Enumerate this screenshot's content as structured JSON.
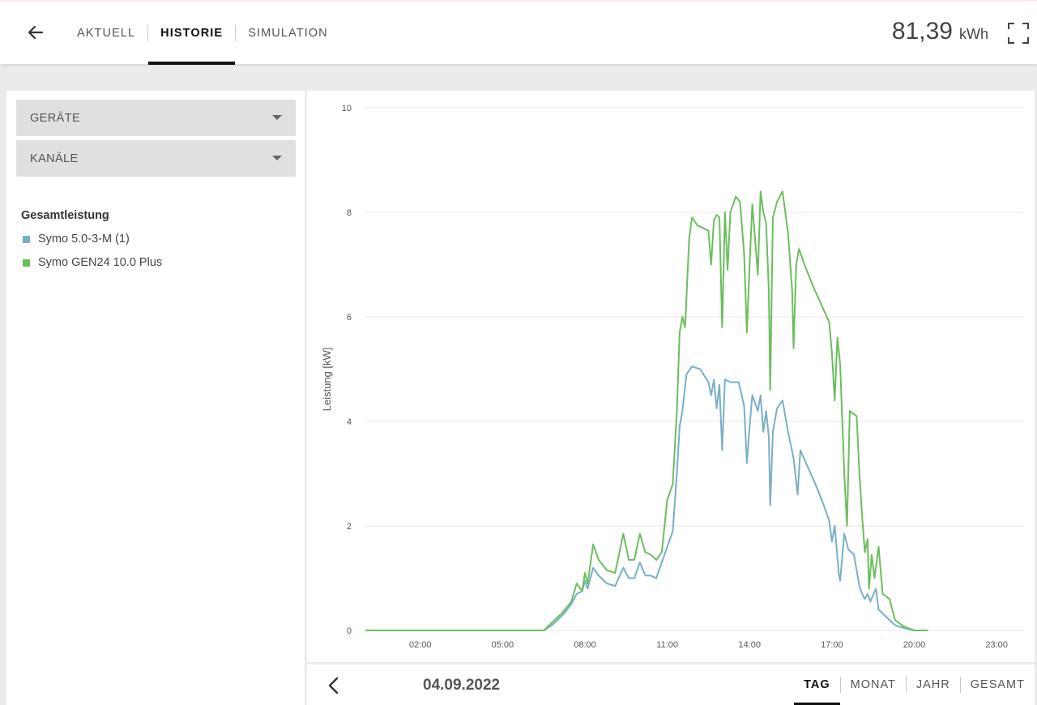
{
  "header": {
    "back_icon": "arrow-left-icon",
    "tabs": [
      {
        "label": "AKTUELL",
        "active": false
      },
      {
        "label": "HISTORIE",
        "active": true
      },
      {
        "label": "SIMULATION",
        "active": false
      }
    ],
    "total_value": "81,39",
    "total_unit": "kWh",
    "fullscreen_icon": "fullscreen-icon",
    "accent_color": "#111111"
  },
  "sidebar": {
    "dropdowns": [
      {
        "label": "GERÄTE"
      },
      {
        "label": "KANÄLE"
      }
    ],
    "legend_title": "Gesamtleistung",
    "legend_items": [
      {
        "label": "Symo 5.0-3-M (1)",
        "color": "#78afc8"
      },
      {
        "label": "Symo GEN24 10.0 Plus",
        "color": "#6abf5c"
      }
    ]
  },
  "footer": {
    "prev_icon": "chevron-left-icon",
    "date": "04.09.2022",
    "range_tabs": [
      {
        "label": "TAG",
        "active": true
      },
      {
        "label": "MONAT",
        "active": false
      },
      {
        "label": "JAHR",
        "active": false
      },
      {
        "label": "GESAMT",
        "active": false
      }
    ]
  },
  "chart_data": {
    "type": "line",
    "ylabel": "Leistung [kW]",
    "xlabel": "",
    "ylim": [
      0,
      10
    ],
    "y_ticks": [
      0,
      2,
      4,
      6,
      8,
      10
    ],
    "x_range_hours": [
      0,
      24
    ],
    "x_ticks": [
      {
        "hour": 2,
        "label": "02:00"
      },
      {
        "hour": 5,
        "label": "05:00"
      },
      {
        "hour": 8,
        "label": "08:00"
      },
      {
        "hour": 11,
        "label": "11:00"
      },
      {
        "hour": 14,
        "label": "14:00"
      },
      {
        "hour": 17,
        "label": "17:00"
      },
      {
        "hour": 20,
        "label": "20:00"
      },
      {
        "hour": 23,
        "label": "23:00"
      }
    ],
    "grid": true,
    "series": [
      {
        "name": "Symo 5.0-3-M (1)",
        "color": "#78afc8",
        "points": [
          [
            0,
            0
          ],
          [
            6.5,
            0
          ],
          [
            6.8,
            0.1
          ],
          [
            7.2,
            0.3
          ],
          [
            7.5,
            0.5
          ],
          [
            7.7,
            0.7
          ],
          [
            7.9,
            0.75
          ],
          [
            8.0,
            0.95
          ],
          [
            8.1,
            0.8
          ],
          [
            8.3,
            1.2
          ],
          [
            8.5,
            1.05
          ],
          [
            8.8,
            0.9
          ],
          [
            9.1,
            0.85
          ],
          [
            9.4,
            1.2
          ],
          [
            9.6,
            1.0
          ],
          [
            9.8,
            1.0
          ],
          [
            10.0,
            1.3
          ],
          [
            10.2,
            1.05
          ],
          [
            10.4,
            1.05
          ],
          [
            10.6,
            1.0
          ],
          [
            10.8,
            1.3
          ],
          [
            11.0,
            1.6
          ],
          [
            11.2,
            1.9
          ],
          [
            11.35,
            3.0
          ],
          [
            11.45,
            3.9
          ],
          [
            11.55,
            4.2
          ],
          [
            11.7,
            4.9
          ],
          [
            11.9,
            5.05
          ],
          [
            12.2,
            5.0
          ],
          [
            12.5,
            4.75
          ],
          [
            12.6,
            4.5
          ],
          [
            12.7,
            4.8
          ],
          [
            12.8,
            4.25
          ],
          [
            12.9,
            4.7
          ],
          [
            13.0,
            3.45
          ],
          [
            13.1,
            4.8
          ],
          [
            13.3,
            4.75
          ],
          [
            13.6,
            4.75
          ],
          [
            13.8,
            4.3
          ],
          [
            13.9,
            3.2
          ],
          [
            14.0,
            3.9
          ],
          [
            14.1,
            4.5
          ],
          [
            14.3,
            4.2
          ],
          [
            14.4,
            4.5
          ],
          [
            14.5,
            3.8
          ],
          [
            14.6,
            4.2
          ],
          [
            14.7,
            3.7
          ],
          [
            14.75,
            2.4
          ],
          [
            14.85,
            3.8
          ],
          [
            15.0,
            4.25
          ],
          [
            15.2,
            4.4
          ],
          [
            15.4,
            3.8
          ],
          [
            15.6,
            3.3
          ],
          [
            15.75,
            2.6
          ],
          [
            15.85,
            3.45
          ],
          [
            16.1,
            3.15
          ],
          [
            16.4,
            2.8
          ],
          [
            16.7,
            2.4
          ],
          [
            16.9,
            2.1
          ],
          [
            17.0,
            1.7
          ],
          [
            17.1,
            2.0
          ],
          [
            17.25,
            1.1
          ],
          [
            17.3,
            0.95
          ],
          [
            17.45,
            1.85
          ],
          [
            17.6,
            1.55
          ],
          [
            17.8,
            1.45
          ],
          [
            18.0,
            0.85
          ],
          [
            18.1,
            0.7
          ],
          [
            18.2,
            0.6
          ],
          [
            18.3,
            0.7
          ],
          [
            18.4,
            0.55
          ],
          [
            18.6,
            0.8
          ],
          [
            18.7,
            0.4
          ],
          [
            19.0,
            0.25
          ],
          [
            19.3,
            0.1
          ],
          [
            19.6,
            0.05
          ],
          [
            20.0,
            0
          ],
          [
            20.5,
            0
          ]
        ]
      },
      {
        "name": "Symo GEN24 10.0 Plus",
        "color": "#6abf5c",
        "points": [
          [
            0,
            0
          ],
          [
            6.5,
            0
          ],
          [
            6.8,
            0.15
          ],
          [
            7.2,
            0.35
          ],
          [
            7.5,
            0.55
          ],
          [
            7.7,
            0.9
          ],
          [
            7.9,
            0.75
          ],
          [
            8.0,
            1.1
          ],
          [
            8.1,
            0.9
          ],
          [
            8.3,
            1.65
          ],
          [
            8.5,
            1.35
          ],
          [
            8.8,
            1.15
          ],
          [
            9.1,
            1.1
          ],
          [
            9.4,
            1.85
          ],
          [
            9.6,
            1.35
          ],
          [
            9.8,
            1.35
          ],
          [
            10.0,
            1.85
          ],
          [
            10.2,
            1.5
          ],
          [
            10.4,
            1.45
          ],
          [
            10.6,
            1.35
          ],
          [
            10.8,
            1.5
          ],
          [
            11.0,
            2.5
          ],
          [
            11.2,
            2.8
          ],
          [
            11.35,
            4.2
          ],
          [
            11.45,
            5.7
          ],
          [
            11.55,
            6.0
          ],
          [
            11.65,
            5.8
          ],
          [
            11.8,
            7.5
          ],
          [
            11.9,
            7.9
          ],
          [
            12.1,
            7.75
          ],
          [
            12.3,
            7.7
          ],
          [
            12.5,
            7.65
          ],
          [
            12.6,
            7.0
          ],
          [
            12.7,
            7.85
          ],
          [
            12.8,
            7.95
          ],
          [
            12.9,
            7.9
          ],
          [
            13.0,
            5.8
          ],
          [
            13.1,
            8.0
          ],
          [
            13.2,
            6.9
          ],
          [
            13.3,
            8.0
          ],
          [
            13.5,
            8.3
          ],
          [
            13.65,
            8.2
          ],
          [
            13.8,
            7.2
          ],
          [
            13.9,
            5.7
          ],
          [
            14.0,
            7.0
          ],
          [
            14.1,
            8.15
          ],
          [
            14.2,
            7.5
          ],
          [
            14.3,
            6.8
          ],
          [
            14.4,
            8.4
          ],
          [
            14.5,
            8.0
          ],
          [
            14.6,
            7.8
          ],
          [
            14.7,
            6.5
          ],
          [
            14.75,
            4.6
          ],
          [
            14.85,
            7.9
          ],
          [
            15.0,
            8.2
          ],
          [
            15.2,
            8.4
          ],
          [
            15.4,
            7.6
          ],
          [
            15.55,
            6.5
          ],
          [
            15.6,
            5.4
          ],
          [
            15.7,
            7.0
          ],
          [
            15.8,
            7.3
          ],
          [
            16.0,
            7.0
          ],
          [
            16.3,
            6.6
          ],
          [
            16.6,
            6.25
          ],
          [
            16.9,
            5.9
          ],
          [
            17.0,
            5.3
          ],
          [
            17.1,
            4.4
          ],
          [
            17.2,
            5.6
          ],
          [
            17.3,
            5.1
          ],
          [
            17.45,
            3.0
          ],
          [
            17.55,
            2.0
          ],
          [
            17.65,
            4.2
          ],
          [
            17.9,
            4.1
          ],
          [
            18.0,
            3.0
          ],
          [
            18.1,
            2.2
          ],
          [
            18.2,
            1.5
          ],
          [
            18.3,
            1.75
          ],
          [
            18.35,
            0.8
          ],
          [
            18.45,
            1.45
          ],
          [
            18.55,
            1.0
          ],
          [
            18.7,
            1.6
          ],
          [
            18.85,
            0.7
          ],
          [
            19.1,
            0.6
          ],
          [
            19.3,
            0.2
          ],
          [
            19.6,
            0.08
          ],
          [
            20.0,
            0
          ],
          [
            20.5,
            0
          ]
        ]
      }
    ]
  }
}
